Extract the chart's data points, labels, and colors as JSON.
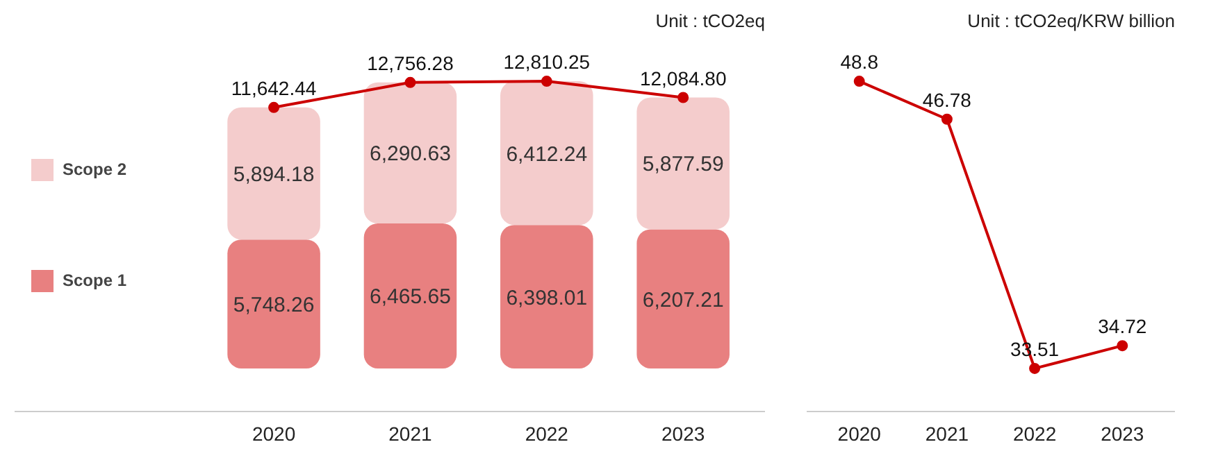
{
  "chart_data": [
    {
      "type": "bar",
      "stacked": true,
      "categories": [
        "2020",
        "2021",
        "2022",
        "2023"
      ],
      "series": [
        {
          "name": "Scope 1",
          "color": "#e88080",
          "values": [
            5748.26,
            6465.65,
            6398.01,
            6207.21
          ],
          "value_labels": [
            "5,748.26",
            "6,465.65",
            "6,398.01",
            "6,207.21"
          ]
        },
        {
          "name": "Scope 2",
          "color": "#f4cccc",
          "values": [
            5894.18,
            6290.63,
            6412.24,
            5877.59
          ],
          "value_labels": [
            "5,894.18",
            "6,290.63",
            "6,412.24",
            "5,877.59"
          ]
        },
        {
          "type": "line",
          "color": "#cc0000",
          "values": [
            11642.44,
            12756.28,
            12810.25,
            12084.8
          ],
          "value_labels": [
            "11,642.44",
            "12,756.28",
            "12,810.25",
            "12,084.80"
          ]
        }
      ],
      "marker": "circle",
      "legend": "left",
      "tick_labels": "x",
      "grid": false,
      "annotations": [
        "Unit : tCO2eq"
      ]
    },
    {
      "type": "line",
      "categories": [
        "2020",
        "2021",
        "2022",
        "2023"
      ],
      "series": [
        {
          "color": "#cc0000",
          "values": [
            48.8,
            46.78,
            33.51,
            34.72
          ],
          "value_labels": [
            "48.8",
            "46.78",
            "33.51",
            "34.72"
          ]
        }
      ],
      "marker": "circle",
      "tick_labels": "x",
      "grid": false,
      "annotations": [
        "Unit : tCO2eq/KRW billion"
      ]
    }
  ]
}
